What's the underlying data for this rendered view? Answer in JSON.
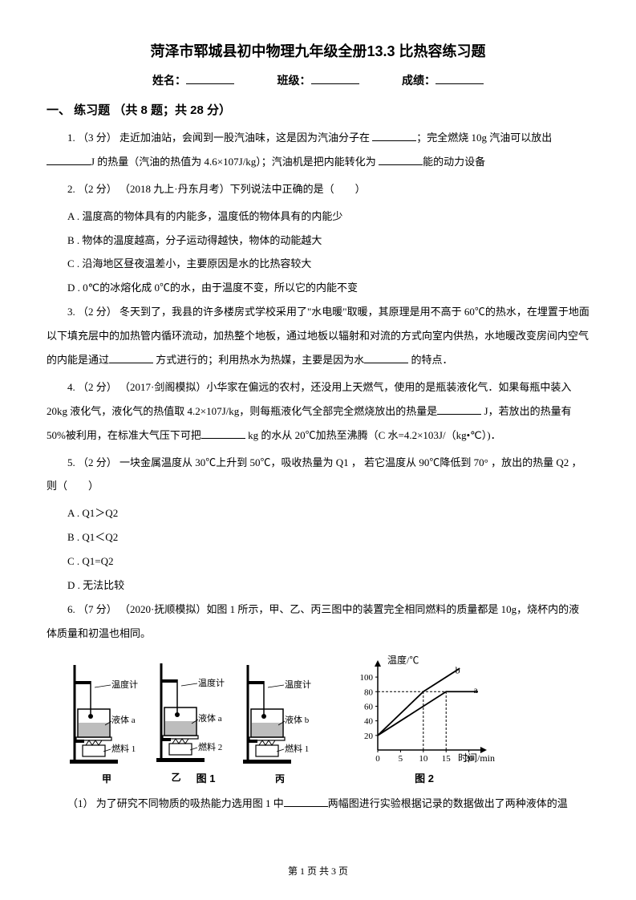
{
  "title": "菏泽市郓城县初中物理九年级全册13.3 比热容练习题",
  "info": {
    "name_label": "姓名：",
    "class_label": "班级：",
    "score_label": "成绩："
  },
  "section_heading": "一、 练习题 （共 8 题；共 28 分）",
  "q1": {
    "text_a": "1. （3 分） 走近加油站，会闻到一股汽油味，这是因为汽油分子在 ",
    "text_b": "；完全燃烧 10g 汽油可以放出 ",
    "text_c": "J 的热量（汽油的热值为 4.6×107J/kg）；汽油机是把内能转化为 ",
    "text_d": "能的动力设备"
  },
  "q2": {
    "text": "2. （2 分） （2018 九上·丹东月考）下列说法中正确的是（　　）",
    "options": {
      "A": "A . 温度高的物体具有的内能多，温度低的物体具有的内能少",
      "B": "B . 物体的温度越高，分子运动得越快，物体的动能越大",
      "C": "C . 沿海地区昼夜温差小，主要原因是水的比热容较大",
      "D": "D . 0℃的冰熔化成 0℃的水，由于温度不变，所以它的内能不变"
    }
  },
  "q3": {
    "text_a": "3. （2 分） 冬天到了，我县的许多楼房式学校采用了\"水电暖\"取暖，其原理是用不高于 60℃的热水，在埋置于地面以下填充层中的加热管内循环流动，加热整个地板，通过地板以辐射和对流的方式向室内供热，水地暖改变房间内空气的内能是通过",
    "text_b": " 方式进行的；利用热水为热媒，主要是因为水",
    "text_c": " 的特点．"
  },
  "q4": {
    "text_a": "4. （2 分） （2017·剑阁模拟）小华家在偏远的农村，还没用上天燃气，使用的是瓶装液化气．如果每瓶中装入 20kg 液化气，液化气的热值取 4.2×107J/kg，则每瓶液化气全部完全燃烧放出的热量是",
    "text_b": " J，若放出的热量有 50%被利用，在标准大气压下可把",
    "text_c": " kg 的水从 20℃加热至沸腾（C 水=4.2×103J/（kg•℃）)．"
  },
  "q5": {
    "text": "5. （2 分） 一块金属温度从 30℃上升到 50℃，吸收热量为 Q1  ， 若它温度从 90℃降低到 70° ，放出的热量 Q2  ， 则（　　）",
    "options": {
      "A": "A . Q1＞Q2",
      "B": "B . Q1＜Q2",
      "C": "C . Q1=Q2",
      "D": "D . 无法比较"
    }
  },
  "q6": {
    "text": "6. （7 分） （2020·抚顺模拟）如图 1 所示，甲、乙、丙三图中的装置完全相同燃料的质量都是 10g，烧杯内的液体质量和初温也相同。"
  },
  "q6_1": {
    "text_a": "（1） 为了研究不同物质的吸热能力选用图 1 中",
    "text_b": "两幅图进行实验根据记录的数据做出了两种液体的温"
  },
  "figure1": {
    "apparatus": [
      {
        "label": "甲",
        "liquid": "液体 a",
        "fuel": "燃料 1",
        "therm": "温度计"
      },
      {
        "label": "乙",
        "liquid": "液体 a",
        "fuel": "燃料 2",
        "therm": "温度计"
      },
      {
        "label": "丙",
        "liquid": "液体 b",
        "fuel": "燃料 1",
        "therm": "温度计"
      }
    ],
    "fig_label": "图 1"
  },
  "chart": {
    "ylabel": "温度/℃",
    "xlabel": "时间/min",
    "yticks": [
      20,
      40,
      60,
      80,
      100
    ],
    "xticks": [
      0,
      5,
      10,
      15,
      20
    ],
    "line_a": {
      "label": "a",
      "points": [
        [
          0,
          20
        ],
        [
          15,
          80
        ],
        [
          22,
          80
        ]
      ]
    },
    "line_b": {
      "label": "b",
      "points": [
        [
          0,
          20
        ],
        [
          10,
          80
        ],
        [
          18,
          112
        ]
      ]
    },
    "dash_color": "#000000",
    "text_color": "#000000",
    "fig_label": "图 2"
  },
  "footer": "第 1 页 共 3 页"
}
